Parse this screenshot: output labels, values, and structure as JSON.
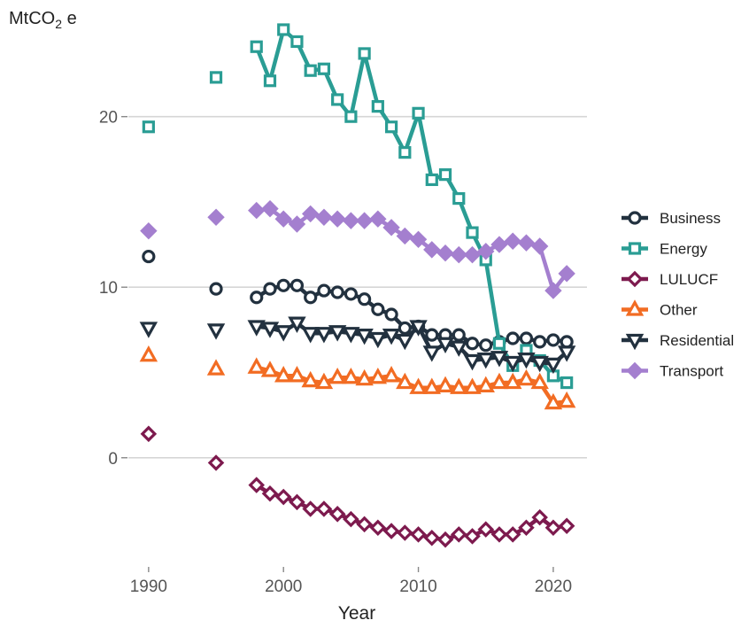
{
  "chart_data": {
    "type": "line",
    "ylabel_main": "MtCO",
    "ylabel_sub": "2",
    "ylabel_tail": " e",
    "xlabel": "Year",
    "xlim": [
      1988.5,
      2022.5
    ],
    "ylim": [
      -6.4,
      25.8
    ],
    "x_ticks": [
      1990,
      2000,
      2010,
      2020
    ],
    "y_ticks": [
      0,
      10,
      20
    ],
    "grid": "horizontal",
    "legend_position": "right",
    "series": [
      {
        "name": "Business",
        "color": "#22313f",
        "marker": "circle",
        "x": [
          1990,
          1995,
          1998,
          1999,
          2000,
          2001,
          2002,
          2003,
          2004,
          2005,
          2006,
          2007,
          2008,
          2009,
          2010,
          2011,
          2012,
          2013,
          2014,
          2015,
          2016,
          2017,
          2018,
          2019,
          2020,
          2021
        ],
        "y": [
          11.8,
          9.9,
          9.4,
          9.9,
          10.1,
          10.1,
          9.4,
          9.8,
          9.7,
          9.6,
          9.3,
          8.7,
          8.4,
          7.6,
          7.7,
          7.2,
          7.2,
          7.2,
          6.7,
          6.6,
          6.8,
          7.0,
          7.0,
          6.8,
          6.9,
          6.8
        ]
      },
      {
        "name": "Energy",
        "color": "#2a9d94",
        "marker": "square",
        "x": [
          1990,
          1995,
          1998,
          1999,
          2000,
          2001,
          2002,
          2003,
          2004,
          2005,
          2006,
          2007,
          2008,
          2009,
          2010,
          2011,
          2012,
          2013,
          2014,
          2015,
          2016,
          2017,
          2018,
          2019,
          2020,
          2021
        ],
        "y": [
          19.4,
          22.3,
          24.1,
          22.1,
          25.1,
          24.4,
          22.7,
          22.8,
          21.0,
          20.0,
          23.7,
          20.6,
          19.4,
          17.9,
          20.2,
          16.3,
          16.6,
          15.2,
          13.2,
          11.6,
          6.7,
          5.4,
          6.3,
          5.7,
          4.8,
          4.4
        ]
      },
      {
        "name": "LULUCF",
        "color": "#7d1a4e",
        "marker": "diamond",
        "x": [
          1990,
          1995,
          1998,
          1999,
          2000,
          2001,
          2002,
          2003,
          2004,
          2005,
          2006,
          2007,
          2008,
          2009,
          2010,
          2011,
          2012,
          2013,
          2014,
          2015,
          2016,
          2017,
          2018,
          2019,
          2020,
          2021
        ],
        "y": [
          1.4,
          -0.3,
          -1.6,
          -2.1,
          -2.3,
          -2.6,
          -3.0,
          -3.0,
          -3.3,
          -3.6,
          -3.9,
          -4.1,
          -4.3,
          -4.4,
          -4.5,
          -4.7,
          -4.8,
          -4.5,
          -4.6,
          -4.2,
          -4.5,
          -4.5,
          -4.1,
          -3.5,
          -4.1,
          -4.0
        ]
      },
      {
        "name": "Other",
        "color": "#f26c23",
        "marker": "triangle-up",
        "x": [
          1990,
          1995,
          1998,
          1999,
          2000,
          2001,
          2002,
          2003,
          2004,
          2005,
          2006,
          2007,
          2008,
          2009,
          2010,
          2011,
          2012,
          2013,
          2014,
          2015,
          2016,
          2017,
          2018,
          2019,
          2020,
          2021
        ],
        "y": [
          6.0,
          5.2,
          5.3,
          5.1,
          4.8,
          4.8,
          4.5,
          4.4,
          4.7,
          4.7,
          4.6,
          4.7,
          4.8,
          4.4,
          4.1,
          4.1,
          4.2,
          4.1,
          4.1,
          4.2,
          4.4,
          4.4,
          4.6,
          4.4,
          3.2,
          3.3
        ]
      },
      {
        "name": "Residential",
        "color": "#22313f",
        "marker": "triangle-down",
        "x": [
          1990,
          1995,
          1998,
          1999,
          2000,
          2001,
          2002,
          2003,
          2004,
          2005,
          2006,
          2007,
          2008,
          2009,
          2010,
          2011,
          2012,
          2013,
          2014,
          2015,
          2016,
          2017,
          2018,
          2019,
          2020,
          2021
        ],
        "y": [
          7.6,
          7.5,
          7.7,
          7.6,
          7.4,
          7.9,
          7.3,
          7.3,
          7.4,
          7.3,
          7.2,
          7.0,
          7.2,
          6.9,
          7.7,
          6.2,
          6.7,
          6.5,
          5.7,
          5.8,
          5.9,
          5.6,
          5.8,
          5.6,
          5.5,
          6.2
        ]
      },
      {
        "name": "Transport",
        "color": "#a47fcf",
        "marker": "diamond-filled",
        "x": [
          1990,
          1995,
          1998,
          1999,
          2000,
          2001,
          2002,
          2003,
          2004,
          2005,
          2006,
          2007,
          2008,
          2009,
          2010,
          2011,
          2012,
          2013,
          2014,
          2015,
          2016,
          2017,
          2018,
          2019,
          2020,
          2021
        ],
        "y": [
          13.3,
          14.1,
          14.5,
          14.6,
          14.0,
          13.7,
          14.3,
          14.1,
          14.0,
          13.9,
          13.9,
          14.0,
          13.5,
          13.0,
          12.8,
          12.2,
          12.0,
          11.9,
          11.9,
          12.1,
          12.5,
          12.7,
          12.6,
          12.4,
          9.8,
          10.8
        ]
      }
    ]
  }
}
